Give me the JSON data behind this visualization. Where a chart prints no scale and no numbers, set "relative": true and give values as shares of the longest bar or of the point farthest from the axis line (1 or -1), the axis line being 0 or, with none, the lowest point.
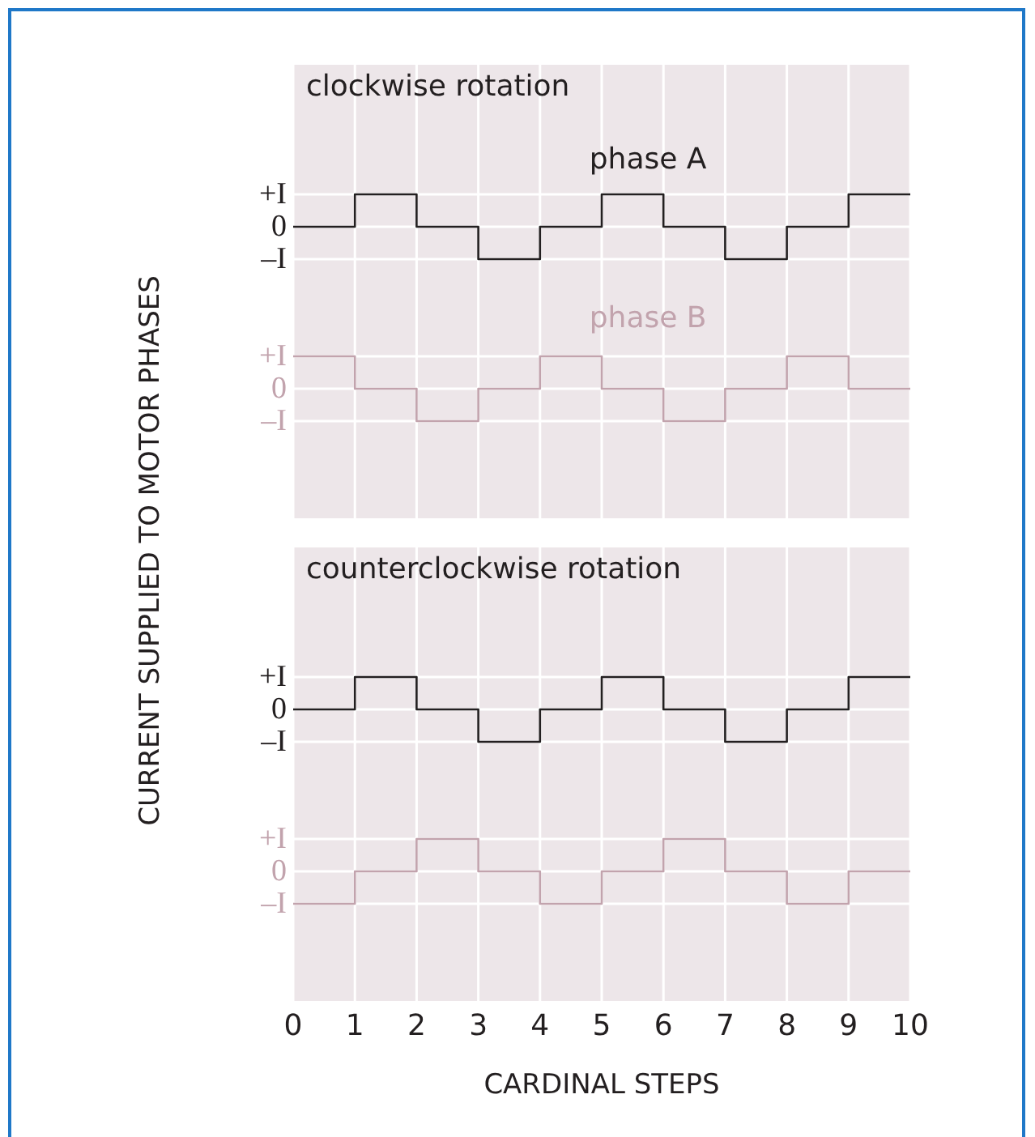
{
  "chart_data": [
    {
      "type": "step",
      "title": "clockwise rotation",
      "ylabel": "CURRENT SUPPLIED TO MOTOR PHASES",
      "x": [
        0,
        1,
        2,
        3,
        4,
        5,
        6,
        7,
        8,
        9,
        10
      ],
      "xlim": [
        0,
        10
      ],
      "xticks": [
        0,
        1,
        2,
        3,
        4,
        5,
        6,
        7,
        8,
        9,
        10
      ],
      "relative": true,
      "grid": true,
      "tick_labels": false,
      "annotations": [
        "+I",
        "0",
        "–I"
      ],
      "series": [
        {
          "name": "phase A",
          "color": "#231f20",
          "values": [
            0,
            1,
            0,
            -1,
            0,
            1,
            0,
            -1,
            0,
            1,
            1
          ]
        }
      ]
    },
    {
      "type": "step",
      "x": [
        0,
        1,
        2,
        3,
        4,
        5,
        6,
        7,
        8,
        9,
        10
      ],
      "xlim": [
        0,
        10
      ],
      "xticks": [
        0,
        1,
        2,
        3,
        4,
        5,
        6,
        7,
        8,
        9,
        10
      ],
      "relative": true,
      "grid": true,
      "tick_labels": false,
      "annotations": [
        "+I",
        "0",
        "–I"
      ],
      "series": [
        {
          "name": "phase B",
          "color": "#c2a3ad",
          "values": [
            1,
            0,
            -1,
            0,
            1,
            0,
            -1,
            0,
            1,
            0,
            0
          ]
        }
      ]
    },
    {
      "type": "step",
      "title": "counterclockwise rotation",
      "x": [
        0,
        1,
        2,
        3,
        4,
        5,
        6,
        7,
        8,
        9,
        10
      ],
      "xlim": [
        0,
        10
      ],
      "xticks": [
        0,
        1,
        2,
        3,
        4,
        5,
        6,
        7,
        8,
        9,
        10
      ],
      "relative": true,
      "grid": true,
      "tick_labels": false,
      "annotations": [
        "+I",
        "0",
        "–I"
      ],
      "series": [
        {
          "color": "#231f20",
          "values": [
            0,
            1,
            0,
            -1,
            0,
            1,
            0,
            -1,
            0,
            1,
            1
          ]
        }
      ]
    },
    {
      "type": "step",
      "xlabel": "CARDINAL STEPS",
      "x": [
        0,
        1,
        2,
        3,
        4,
        5,
        6,
        7,
        8,
        9,
        10
      ],
      "xlim": [
        0,
        10
      ],
      "xticks": [
        0,
        1,
        2,
        3,
        4,
        5,
        6,
        7,
        8,
        9,
        10
      ],
      "relative": true,
      "grid": true,
      "tick_labels": "x",
      "annotations": [
        "+I",
        "0",
        "–I"
      ],
      "series": [
        {
          "color": "#c2a3ad",
          "values": [
            -1,
            0,
            1,
            0,
            -1,
            0,
            1,
            0,
            -1,
            0,
            0
          ]
        }
      ]
    }
  ]
}
